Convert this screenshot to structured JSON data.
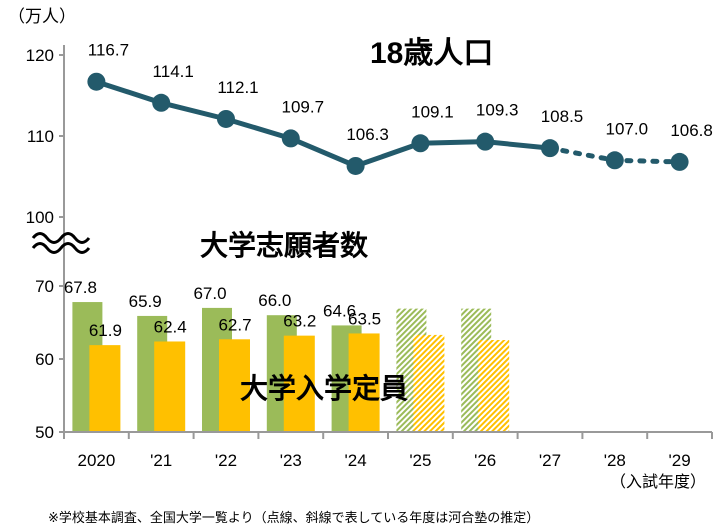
{
  "chart_data": {
    "type": "bar+line",
    "unit_label": "（万人）",
    "x_categories": [
      "2020",
      "'21",
      "'22",
      "'23",
      "'24",
      "'25",
      "'26",
      "'27",
      "'28",
      "'29"
    ],
    "x_axis_note": "（入試年度）",
    "upper_axis": {
      "ticks": [
        100,
        110,
        120
      ],
      "ylim": [
        100,
        120
      ]
    },
    "lower_axis": {
      "ticks": [
        50,
        60,
        70
      ],
      "ylim": [
        50,
        70
      ]
    },
    "line_series": {
      "name": "18歳人口",
      "color": "#235a6b",
      "values": [
        116.7,
        114.1,
        112.1,
        109.7,
        106.3,
        109.1,
        109.3,
        108.5,
        107.0,
        106.8
      ],
      "labels": [
        "116.7",
        "114.1",
        "112.1",
        "109.7",
        "106.3",
        "109.1",
        "109.3",
        "108.5",
        "107.0",
        "106.8"
      ],
      "estimated_from_index": 8
    },
    "bar_series": [
      {
        "name": "大学志願者数",
        "color": "#9bbb59",
        "values": [
          67.8,
          65.9,
          67.0,
          66.0,
          64.6,
          66.9,
          66.9,
          null,
          null,
          null
        ],
        "labels": [
          "67.8",
          "65.9",
          "67.0",
          "66.0",
          "64.6",
          "",
          "",
          "",
          "",
          ""
        ],
        "estimated_from_index": 5
      },
      {
        "name": "大学入学定員",
        "color": "#ffc000",
        "values": [
          61.9,
          62.4,
          62.7,
          63.2,
          63.5,
          63.3,
          62.6,
          null,
          null,
          null
        ],
        "labels": [
          "61.9",
          "62.4",
          "62.7",
          "63.2",
          "63.5",
          "",
          "",
          "",
          "",
          ""
        ],
        "estimated_from_index": 5
      }
    ],
    "axis_break": true,
    "grid": false,
    "footnote": "※学校基本調査、全国大学一覧より（点線、斜線で表している年度は河合塾の推定）"
  }
}
